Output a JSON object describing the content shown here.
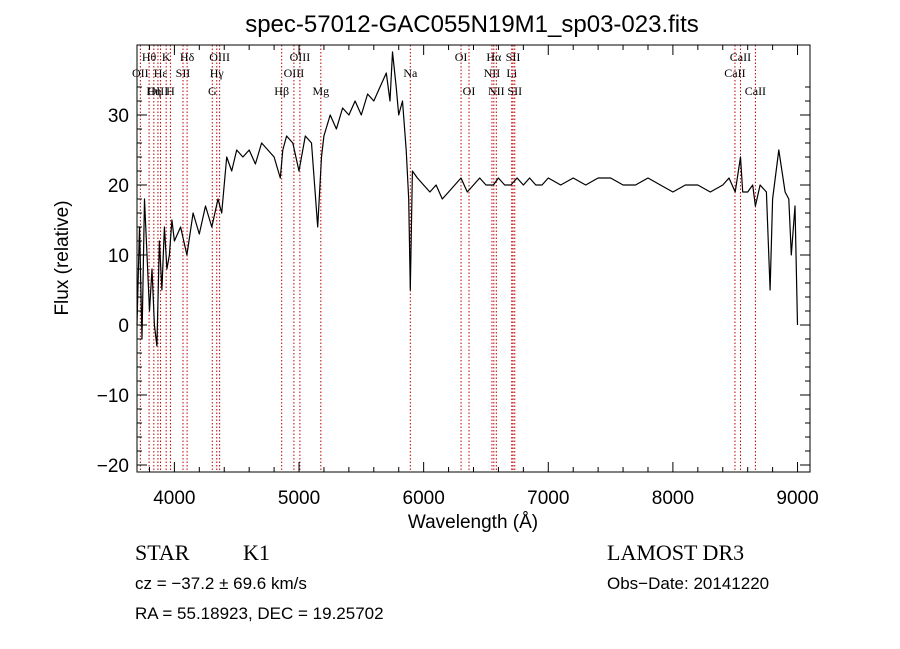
{
  "chart_data": {
    "type": "line",
    "title": "spec-57012-GAC055N19M1_sp03-023.fits",
    "xlabel": "Wavelength (Å)",
    "ylabel": "Flux (relative)",
    "xlim": [
      3700,
      9100
    ],
    "ylim": [
      -21,
      40
    ],
    "xticks": [
      4000,
      5000,
      6000,
      7000,
      8000,
      9000
    ],
    "yticks": [
      -20,
      -10,
      0,
      10,
      20,
      30
    ],
    "spectral_lines": [
      {
        "label": "Hθ",
        "wavelength": 3797,
        "row": 0
      },
      {
        "label": "OII",
        "wavelength": 3727,
        "row": 1
      },
      {
        "label": "OIII",
        "wavelength": 3868,
        "row": 2
      },
      {
        "label": "Hε",
        "wavelength": 3889,
        "row": 1
      },
      {
        "label": "Hη",
        "wavelength": 3835,
        "row": 2
      },
      {
        "label": "K",
        "wavelength": 3934,
        "row": 0
      },
      {
        "label": "H",
        "wavelength": 3968,
        "row": 2
      },
      {
        "label": "SII",
        "wavelength": 4069,
        "row": 1
      },
      {
        "label": "Hδ",
        "wavelength": 4102,
        "row": 0
      },
      {
        "label": "G",
        "wavelength": 4304,
        "row": 2
      },
      {
        "label": "Hγ",
        "wavelength": 4340,
        "row": 1
      },
      {
        "label": "OIII",
        "wavelength": 4363,
        "row": 0
      },
      {
        "label": "Hβ",
        "wavelength": 4861,
        "row": 2
      },
      {
        "label": "OIII",
        "wavelength": 4959,
        "row": 1
      },
      {
        "label": "OIII",
        "wavelength": 5007,
        "row": 0
      },
      {
        "label": "Mg",
        "wavelength": 5175,
        "row": 2
      },
      {
        "label": "Na",
        "wavelength": 5893,
        "row": 1
      },
      {
        "label": "OI",
        "wavelength": 6300,
        "row": 0
      },
      {
        "label": "OI",
        "wavelength": 6364,
        "row": 2
      },
      {
        "label": "NII",
        "wavelength": 6548,
        "row": 1
      },
      {
        "label": "Hα",
        "wavelength": 6563,
        "row": 0
      },
      {
        "label": "NII",
        "wavelength": 6583,
        "row": 2
      },
      {
        "label": "SII",
        "wavelength": 6717,
        "row": 0
      },
      {
        "label": "Li",
        "wavelength": 6707,
        "row": 1
      },
      {
        "label": "SII",
        "wavelength": 6731,
        "row": 2
      },
      {
        "label": "CaII",
        "wavelength": 8498,
        "row": 1
      },
      {
        "label": "CaII",
        "wavelength": 8542,
        "row": 0
      },
      {
        "label": "CaII",
        "wavelength": 8662,
        "row": 2
      }
    ],
    "series": [
      {
        "name": "flux",
        "x": [
          3700,
          3720,
          3740,
          3760,
          3780,
          3800,
          3820,
          3840,
          3860,
          3880,
          3900,
          3920,
          3940,
          3960,
          3980,
          4000,
          4050,
          4100,
          4150,
          4200,
          4250,
          4300,
          4350,
          4380,
          4420,
          4460,
          4500,
          4550,
          4600,
          4650,
          4700,
          4750,
          4800,
          4850,
          4870,
          4900,
          4950,
          5000,
          5050,
          5100,
          5150,
          5180,
          5200,
          5250,
          5300,
          5350,
          5400,
          5450,
          5500,
          5550,
          5600,
          5650,
          5700,
          5730,
          5750,
          5780,
          5800,
          5830,
          5860,
          5880,
          5893,
          5910,
          5950,
          6000,
          6050,
          6100,
          6150,
          6200,
          6250,
          6300,
          6350,
          6400,
          6450,
          6500,
          6560,
          6600,
          6650,
          6700,
          6750,
          6800,
          6850,
          6900,
          6950,
          7000,
          7100,
          7200,
          7300,
          7400,
          7500,
          7600,
          7700,
          7800,
          7900,
          8000,
          8100,
          8200,
          8300,
          8400,
          8450,
          8500,
          8542,
          8560,
          8600,
          8640,
          8662,
          8700,
          8750,
          8780,
          8800,
          8850,
          8900,
          8930,
          8950,
          8980,
          9000
        ],
        "values": [
          0,
          14,
          -2,
          18,
          10,
          2,
          8,
          0,
          -3,
          12,
          5,
          14,
          8,
          10,
          15,
          12,
          14,
          10,
          16,
          13,
          17,
          14,
          18,
          16,
          24,
          22,
          25,
          24,
          25,
          23,
          26,
          25,
          24,
          21,
          25,
          27,
          26,
          22,
          27,
          26,
          14,
          24,
          27,
          30,
          28,
          31,
          30,
          32,
          30,
          33,
          32,
          34,
          36,
          32,
          39,
          34,
          30,
          32,
          25,
          18,
          5,
          22,
          21,
          20,
          19,
          20,
          18,
          19,
          20,
          21,
          19,
          20,
          21,
          20,
          20,
          21,
          20,
          20,
          21,
          20,
          21,
          20,
          20,
          21,
          20,
          21,
          20,
          21,
          21,
          20,
          20,
          21,
          20,
          19,
          20,
          20,
          19,
          20,
          21,
          19,
          24,
          19,
          19,
          20,
          17,
          20,
          19,
          5,
          18,
          25,
          19,
          18,
          10,
          17,
          0
        ]
      }
    ]
  },
  "info": {
    "object_class": "STAR",
    "subclass": "K1",
    "survey": "LAMOST DR3",
    "redshift": "cz = −37.2 ± 69.6 km/s",
    "obs_date": "Obs−Date: 20141220",
    "coords": "RA =  55.18923, DEC =  19.25702"
  }
}
